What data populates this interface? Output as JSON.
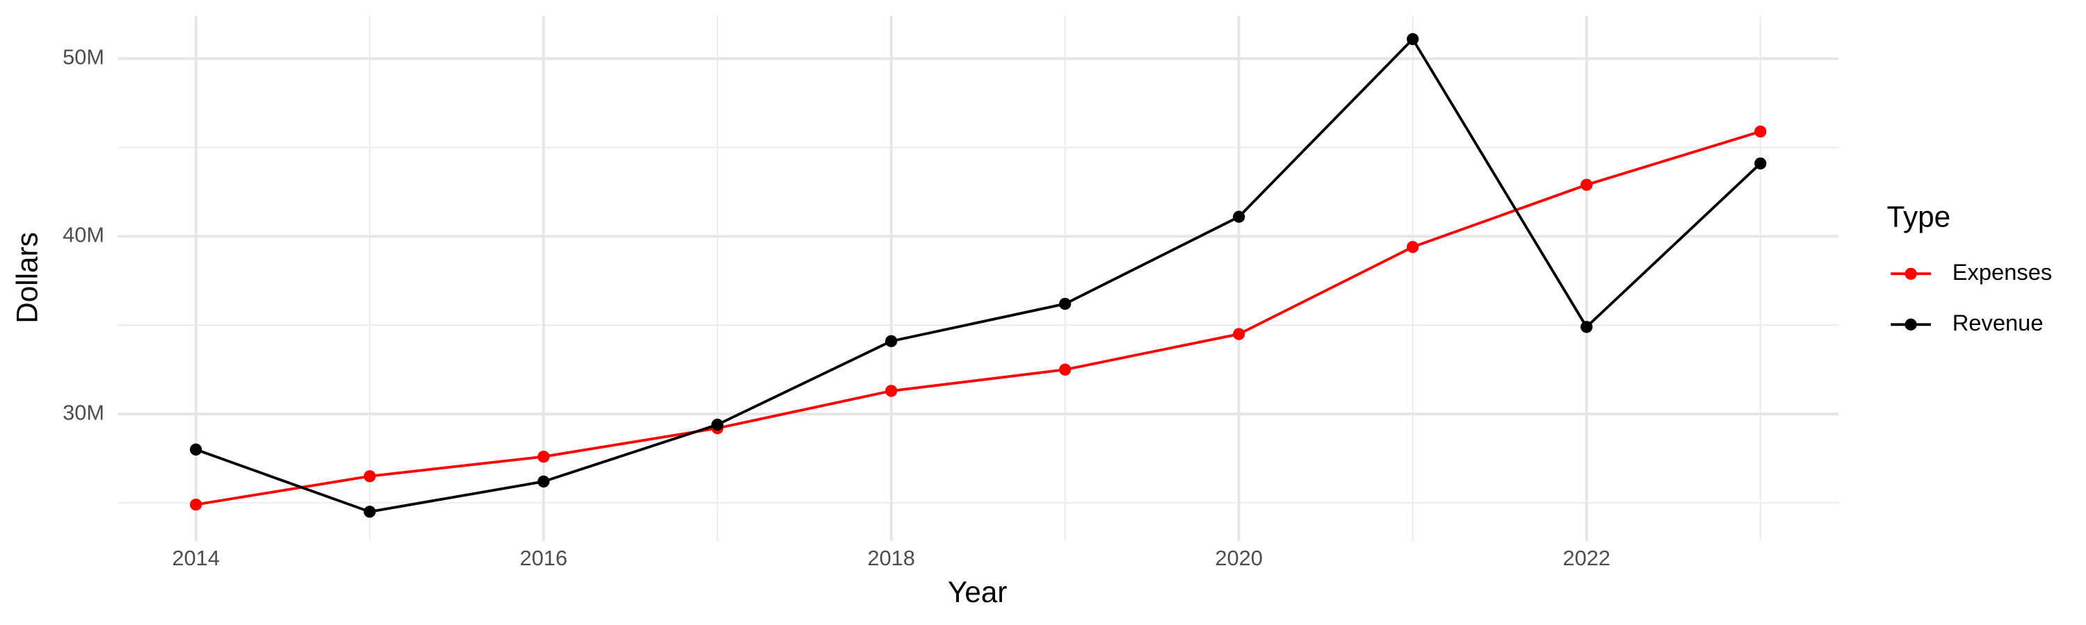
{
  "chart_data": {
    "type": "line",
    "x_label": "Year",
    "y_label": "Dollars",
    "legend_title": "Type",
    "x": [
      2014,
      2015,
      2016,
      2017,
      2018,
      2019,
      2020,
      2021,
      2022,
      2023
    ],
    "series": [
      {
        "name": "Expenses",
        "color": "#ff0000",
        "values": [
          24900000,
          26500000,
          27600000,
          29200000,
          31300000,
          32500000,
          34500000,
          39400000,
          42900000,
          45900000
        ]
      },
      {
        "name": "Revenue",
        "color": "#000000",
        "values": [
          28000000,
          24500000,
          26200000,
          29400000,
          34100000,
          36200000,
          41100000,
          51100000,
          34900000,
          44100000
        ]
      }
    ],
    "xlim": [
      2013.55,
      2023.45
    ],
    "xticks": [
      2014,
      2016,
      2018,
      2020,
      2022
    ],
    "ylim": [
      22860000,
      52400000
    ],
    "yticks": [
      {
        "value": 30000000,
        "label": "30M"
      },
      {
        "value": 40000000,
        "label": "40M"
      },
      {
        "value": 50000000,
        "label": "50M"
      }
    ],
    "grid": true,
    "legend": "right"
  }
}
